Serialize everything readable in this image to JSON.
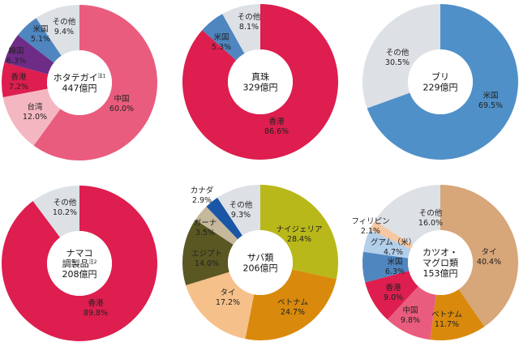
{
  "chart_data": [
    {
      "type": "pie",
      "title": "ホタテガイ",
      "note": "注1",
      "total": "447億円",
      "slices": [
        {
          "label": "中国",
          "value": 60.0,
          "pct": "60.0%",
          "color": "#e95c7d"
        },
        {
          "label": "台湾",
          "value": 12.0,
          "pct": "12.0%",
          "color": "#f4b7c1"
        },
        {
          "label": "香港",
          "value": 7.2,
          "pct": "7.2%",
          "color": "#dd1e4f"
        },
        {
          "label": "韓国",
          "value": 6.3,
          "pct": "6.3%",
          "color": "#6e2c86"
        },
        {
          "label": "米国",
          "value": 5.1,
          "pct": "5.1%",
          "color": "#4f86c0"
        },
        {
          "label": "その他",
          "value": 9.4,
          "pct": "9.4%",
          "color": "#dde1e5"
        }
      ]
    },
    {
      "type": "pie",
      "title": "真珠",
      "total": "329億円",
      "slices": [
        {
          "label": "香港",
          "value": 86.6,
          "pct": "86.6%",
          "color": "#dd1e4f"
        },
        {
          "label": "米国",
          "value": 5.3,
          "pct": "5.3%",
          "color": "#4f86c0"
        },
        {
          "label": "その他",
          "value": 8.1,
          "pct": "8.1%",
          "color": "#dde1e5"
        }
      ]
    },
    {
      "type": "pie",
      "title": "ブリ",
      "total": "229億円",
      "slices": [
        {
          "label": "米国",
          "value": 69.5,
          "pct": "69.5%",
          "color": "#5090c8"
        },
        {
          "label": "その他",
          "value": 30.5,
          "pct": "30.5%",
          "color": "#dde1e5"
        }
      ]
    },
    {
      "type": "pie",
      "title": "ナマコ調製品",
      "title_lines": [
        "ナマコ",
        "調製品"
      ],
      "note": "注2",
      "total": "208億円",
      "slices": [
        {
          "label": "香港",
          "value": 89.8,
          "pct": "89.8%",
          "color": "#dd1e4f"
        },
        {
          "label": "その他",
          "value": 10.2,
          "pct": "10.2%",
          "color": "#dde1e5"
        }
      ]
    },
    {
      "type": "pie",
      "title": "サバ類",
      "total": "206億円",
      "slices": [
        {
          "label": "ナイジェリア",
          "value": 28.4,
          "pct": "28.4%",
          "color": "#b9b81a"
        },
        {
          "label": "ベトナム",
          "value": 24.7,
          "pct": "24.7%",
          "color": "#d98a0c"
        },
        {
          "label": "タイ",
          "value": 17.2,
          "pct": "17.2%",
          "color": "#f5c089"
        },
        {
          "label": "エジプト",
          "value": 14.0,
          "pct": "14.0%",
          "color": "#5a5722"
        },
        {
          "label": "ガーナ",
          "value": 3.5,
          "pct": "3.5%",
          "color": "#c5b89b"
        },
        {
          "label": "カナダ",
          "value": 2.9,
          "pct": "2.9%",
          "color": "#1b56a6"
        },
        {
          "label": "その他",
          "value": 9.3,
          "pct": "9.3%",
          "color": "#dde1e5"
        }
      ]
    },
    {
      "type": "pie",
      "title": "カツオ・マグロ類",
      "title_lines": [
        "カツオ・",
        "マグロ類"
      ],
      "total": "153億円",
      "slices": [
        {
          "label": "タイ",
          "value": 40.4,
          "pct": "40.4%",
          "color": "#d7a679"
        },
        {
          "label": "ベトナム",
          "value": 11.7,
          "pct": "11.7%",
          "color": "#d98a0c"
        },
        {
          "label": "中国",
          "value": 9.8,
          "pct": "9.8%",
          "color": "#e95c7d"
        },
        {
          "label": "香港",
          "value": 9.0,
          "pct": "9.0%",
          "color": "#dd1e4f"
        },
        {
          "label": "米国",
          "value": 6.3,
          "pct": "6.3%",
          "color": "#4f86c0"
        },
        {
          "label": "グアム（米）",
          "value": 4.7,
          "pct": "4.7%",
          "color": "#b3cfea"
        },
        {
          "label": "フィリピン",
          "value": 2.1,
          "pct": "2.1%",
          "color": "#f5c7a2"
        },
        {
          "label": "その他",
          "value": 16.0,
          "pct": "16.0%",
          "color": "#dde1e5"
        }
      ]
    }
  ]
}
